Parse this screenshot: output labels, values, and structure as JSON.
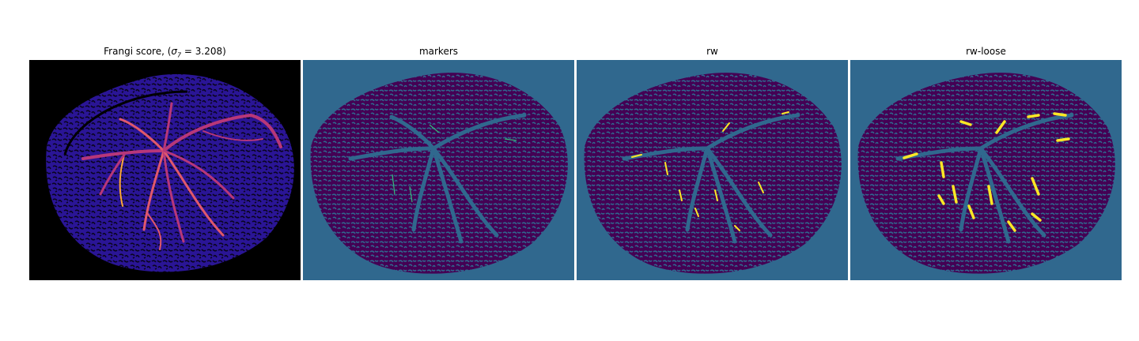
{
  "panels": [
    {
      "title_prefix": "Frangi score, (",
      "title_sigma": "σ",
      "title_sub": "7",
      "title_suffix": " = 3.208)",
      "colormap": "magma",
      "colors": {
        "background": "#000000",
        "texture": "#2a1596",
        "vessel_mid": "#b73779",
        "vessel_hi": "#fca636"
      }
    },
    {
      "title": "markers",
      "colormap": "viridis",
      "colors": {
        "background": "#30688e",
        "tissue": "#440154",
        "label": "#35b779"
      }
    },
    {
      "title": "rw",
      "colormap": "viridis",
      "colors": {
        "background": "#30688e",
        "tissue": "#440154",
        "label": "#fde725"
      }
    },
    {
      "title": "rw-loose",
      "colormap": "viridis",
      "colors": {
        "background": "#30688e",
        "tissue": "#440154",
        "label": "#fde725"
      }
    }
  ]
}
